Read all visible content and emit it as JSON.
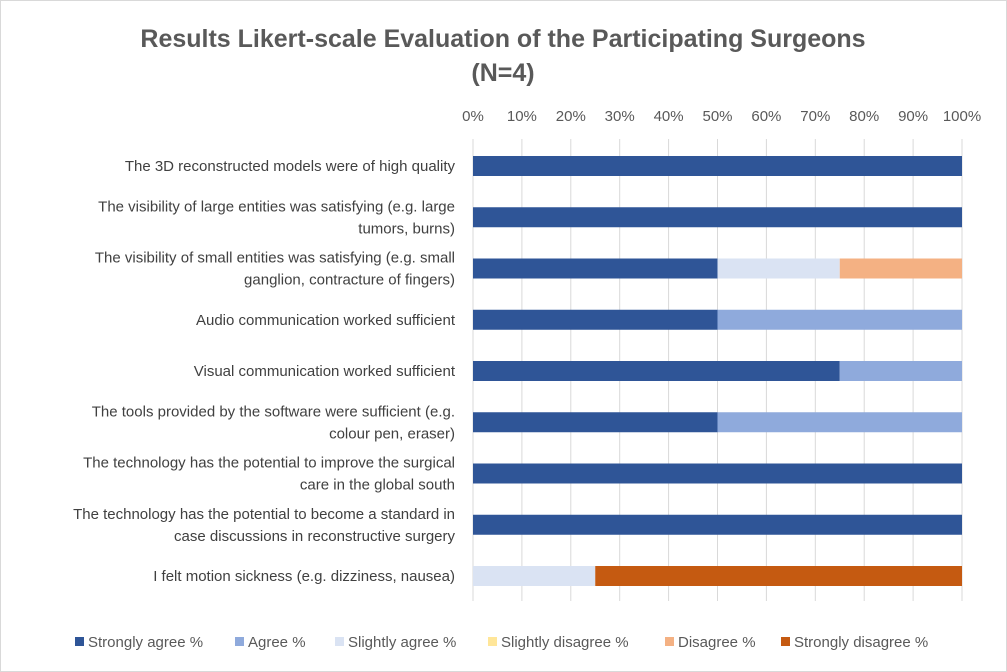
{
  "chart_data": {
    "type": "bar",
    "orientation": "horizontal",
    "stacked": true,
    "title": "Results Likert-scale Evaluation of the Participating Surgeons",
    "subtitle": "(N=4)",
    "xlabel": "",
    "ylabel": "",
    "xlim": [
      0,
      100
    ],
    "x_ticks": [
      "0%",
      "10%",
      "20%",
      "30%",
      "40%",
      "50%",
      "60%",
      "70%",
      "80%",
      "90%",
      "100%"
    ],
    "grid": true,
    "legend_position": "bottom",
    "categories": [
      [
        "The 3D reconstructed models were of high quality"
      ],
      [
        "The visibility of large entities was satisfying (e.g. large",
        "tumors, burns)"
      ],
      [
        "The visibility  of small entities was satisfying (e.g. small",
        "ganglion, contracture of fingers)"
      ],
      [
        "Audio communication worked sufficient"
      ],
      [
        "Visual communication worked sufficient"
      ],
      [
        "The tools provided by the software were sufficient (e.g.",
        "colour pen, eraser)"
      ],
      [
        "The technology has the potential to improve the surgical",
        "care in the global south"
      ],
      [
        "The technology has the potential to become a standard in",
        "case discussions in reconstructive surgery"
      ],
      [
        "I felt motion sickness (e.g. dizziness, nausea)"
      ]
    ],
    "series": [
      {
        "name": "Strongly agree %",
        "color": "#2f5597",
        "values": [
          100,
          100,
          50,
          50,
          75,
          50,
          100,
          100,
          0
        ]
      },
      {
        "name": "Agree %",
        "color": "#8faadc",
        "values": [
          0,
          0,
          0,
          50,
          25,
          50,
          0,
          0,
          0
        ]
      },
      {
        "name": "Slightly agree %",
        "color": "#dae3f3",
        "values": [
          0,
          0,
          25,
          0,
          0,
          0,
          0,
          0,
          25
        ]
      },
      {
        "name": "Slightly disagree %",
        "color": "#ffe699",
        "values": [
          0,
          0,
          0,
          0,
          0,
          0,
          0,
          0,
          0
        ]
      },
      {
        "name": "Disagree %",
        "color": "#f4b183",
        "values": [
          0,
          0,
          25,
          0,
          0,
          0,
          0,
          0,
          0
        ]
      },
      {
        "name": "Strongly disagree %",
        "color": "#c55a11",
        "values": [
          0,
          0,
          0,
          0,
          0,
          0,
          0,
          0,
          75
        ]
      }
    ]
  }
}
